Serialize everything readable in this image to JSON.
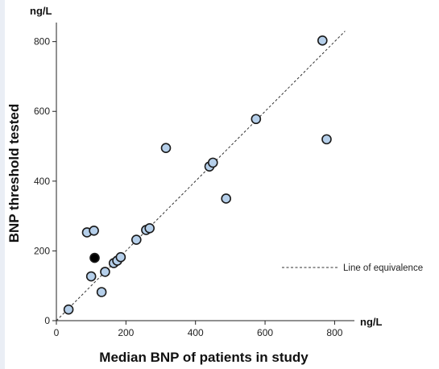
{
  "chart_data": {
    "type": "scatter",
    "title": "",
    "xlabel": "Median BNP of patients in study",
    "ylabel": "BNP threshold tested",
    "x_unit": "ng/L",
    "y_unit": "ng/L",
    "xlim": [
      0,
      850
    ],
    "ylim": [
      0,
      850
    ],
    "x_ticks": [
      0,
      200,
      400,
      600,
      800
    ],
    "y_ticks": [
      0,
      200,
      400,
      600,
      800
    ],
    "grid": false,
    "legend_position": "right",
    "reference_line": {
      "name": "Line of equivalence",
      "style": "dashed",
      "x": [
        0,
        830
      ],
      "y": [
        0,
        830
      ]
    },
    "series": [
      {
        "color": "#b5cfea",
        "points": [
          {
            "x": 35,
            "y": 32
          },
          {
            "x": 88,
            "y": 253
          },
          {
            "x": 108,
            "y": 258
          },
          {
            "x": 100,
            "y": 127
          },
          {
            "x": 130,
            "y": 82
          },
          {
            "x": 140,
            "y": 140
          },
          {
            "x": 165,
            "y": 165
          },
          {
            "x": 175,
            "y": 172
          },
          {
            "x": 185,
            "y": 182
          },
          {
            "x": 230,
            "y": 232
          },
          {
            "x": 258,
            "y": 260
          },
          {
            "x": 268,
            "y": 265
          },
          {
            "x": 315,
            "y": 495
          },
          {
            "x": 440,
            "y": 442
          },
          {
            "x": 450,
            "y": 453
          },
          {
            "x": 488,
            "y": 350
          },
          {
            "x": 574,
            "y": 578
          },
          {
            "x": 765,
            "y": 803
          },
          {
            "x": 777,
            "y": 520
          }
        ]
      },
      {
        "color": "#000000",
        "points": [
          {
            "x": 110,
            "y": 180
          }
        ]
      }
    ]
  }
}
